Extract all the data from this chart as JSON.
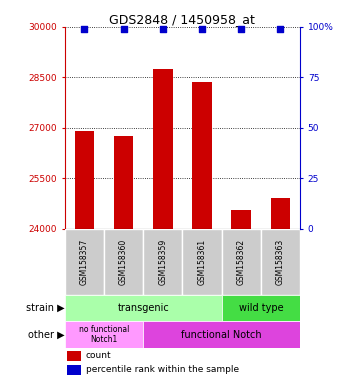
{
  "title": "GDS2848 / 1450958_at",
  "samples": [
    "GSM158357",
    "GSM158360",
    "GSM158359",
    "GSM158361",
    "GSM158362",
    "GSM158363"
  ],
  "counts": [
    26900,
    26750,
    28750,
    28350,
    24550,
    24900
  ],
  "percentiles": [
    99,
    99,
    99,
    99,
    99,
    99
  ],
  "ylim_left": [
    24000,
    30000
  ],
  "yticks_left": [
    24000,
    25500,
    27000,
    28500,
    30000
  ],
  "ylim_right": [
    0,
    100
  ],
  "yticks_right": [
    0,
    25,
    50,
    75,
    100
  ],
  "bar_color": "#cc0000",
  "dot_color": "#0000cc",
  "strain_color_transgenic": "#aaffaa",
  "strain_color_wildtype": "#44dd44",
  "other_color_nofunc": "#ff99ff",
  "other_color_func": "#dd44dd",
  "legend_count_color": "#cc0000",
  "legend_dot_color": "#0000cc",
  "ax_bg": "#ffffff",
  "label_box_color": "#cccccc"
}
